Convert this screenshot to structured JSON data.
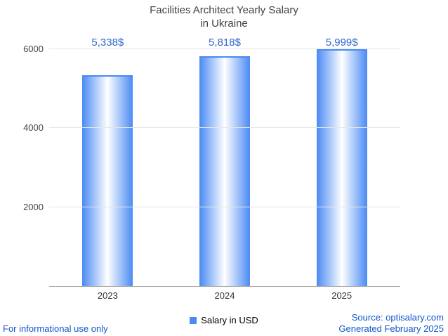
{
  "title": {
    "line1": "Facilities Architect Yearly Salary",
    "line2": "in Ukraine"
  },
  "chart_data": {
    "type": "bar",
    "title": "Facilities Architect Yearly Salary in Ukraine",
    "categories": [
      "2023",
      "2024",
      "2025"
    ],
    "values": [
      5338,
      5818,
      5999
    ],
    "value_labels": [
      "5,338$",
      "5,818$",
      "5,999$"
    ],
    "xlabel": "",
    "ylabel": "",
    "ylim": [
      0,
      6000
    ],
    "yticks": [
      2000,
      4000,
      6000
    ],
    "grid": true,
    "legend": {
      "label": "Salary in USD",
      "position": "bottom"
    },
    "bar_color": "#4a8af4",
    "bar_gradient": [
      "#4a8af4",
      "#ffffff",
      "#4a8af4"
    ],
    "value_label_color": "#3366cc",
    "axis_color": "#a6a6a6",
    "gridline_color": "#e6e6e6"
  },
  "footer": {
    "left": "For informational use only",
    "source": "Source: optisalary.com",
    "generated": "Generated February 2025",
    "link_color": "#1155cc"
  }
}
